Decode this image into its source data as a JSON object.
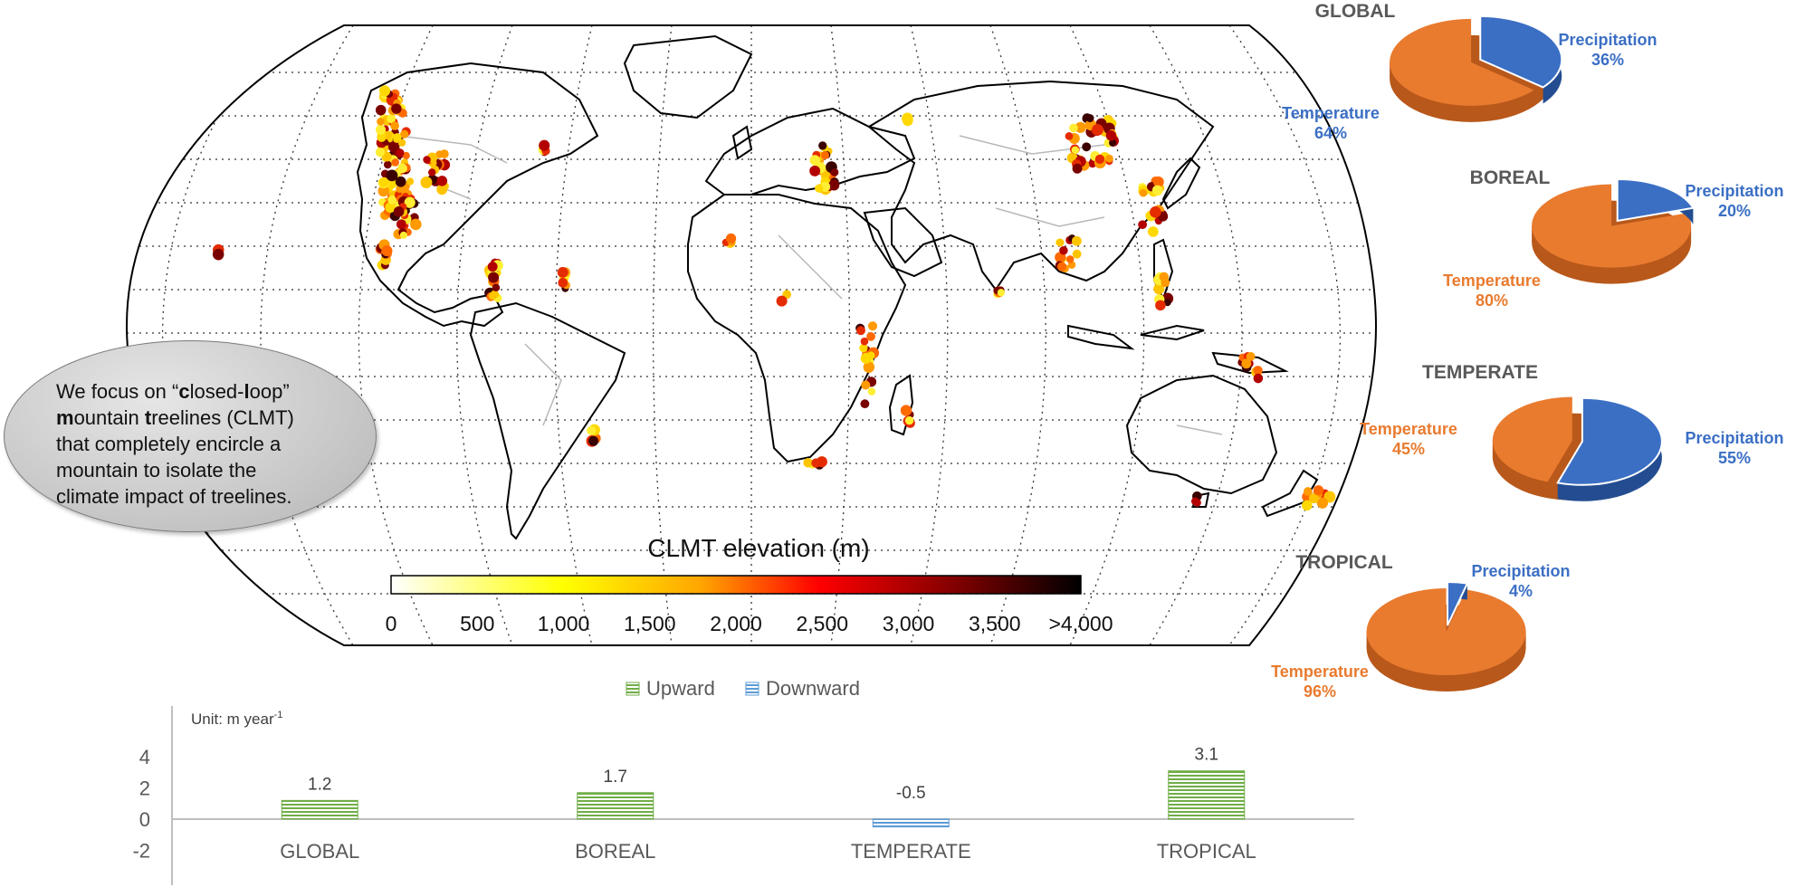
{
  "callout": {
    "line1_pre": "We focus on “",
    "c": "c",
    "line1_mid1": "losed-",
    "l": "l",
    "line1_mid2": "oop”",
    "m": "m",
    "line2_mid": "ountain ",
    "t": "t",
    "line2_end": "reelines (CLMT)",
    "line3": "that completely encircle a",
    "line4": "mountain to isolate the",
    "line5": "climate impact of treelines."
  },
  "colorbar": {
    "title": "CLMT elevation (m)",
    "ticks": [
      "0",
      "500",
      "1,000",
      "1,500",
      "2,000",
      "2,500",
      "3,000",
      "3,500",
      ">4,000"
    ],
    "gradient_stops": [
      "#ffffff",
      "#ffff00",
      "#ffa500",
      "#ff0000",
      "#800000",
      "#000000"
    ]
  },
  "colors": {
    "temperature": "#e97b2f",
    "temperature_dark": "#b8581a",
    "precipitation": "#3b6fc4",
    "precipitation_dark": "#244d91",
    "upward": "#70ad47",
    "downward": "#5b9bd5",
    "pie_title": "#595959",
    "coast": "#000000",
    "rivers": "#b8b8b8",
    "graticule": "#333333"
  },
  "pies": [
    {
      "title": "GLOBAL",
      "temperature_label": "Temperature",
      "temperature_pct": "64%",
      "precipitation_label": "Precipitation",
      "precipitation_pct": "36%"
    },
    {
      "title": "BOREAL",
      "temperature_label": "Temperature",
      "temperature_pct": "80%",
      "precipitation_label": "Precipitation",
      "precipitation_pct": "20%"
    },
    {
      "title": "TEMPERATE",
      "temperature_label": "Temperature",
      "temperature_pct": "45%",
      "precipitation_label": "Precipitation",
      "precipitation_pct": "55%"
    },
    {
      "title": "TROPICAL",
      "temperature_label": "Temperature",
      "temperature_pct": "96%",
      "precipitation_label": "Precipitation",
      "precipitation_pct": "4%"
    }
  ],
  "chart_data": [
    {
      "type": "pie",
      "title": "GLOBAL",
      "categories": [
        "Temperature",
        "Precipitation"
      ],
      "values": [
        64,
        36
      ]
    },
    {
      "type": "pie",
      "title": "BOREAL",
      "categories": [
        "Temperature",
        "Precipitation"
      ],
      "values": [
        80,
        20
      ]
    },
    {
      "type": "pie",
      "title": "TEMPERATE",
      "categories": [
        "Temperature",
        "Precipitation"
      ],
      "values": [
        45,
        55
      ]
    },
    {
      "type": "pie",
      "title": "TROPICAL",
      "categories": [
        "Temperature",
        "Precipitation"
      ],
      "values": [
        96,
        4
      ]
    },
    {
      "type": "bar",
      "categories": [
        "GLOBAL",
        "BOREAL",
        "TEMPERATE",
        "TROPICAL"
      ],
      "values": [
        1.2,
        1.7,
        -0.5,
        3.1
      ],
      "value_labels": [
        "1.2",
        "1.7",
        "-0.5",
        "3.1"
      ],
      "legend": [
        "Upward",
        "Downward"
      ],
      "legend_position": "top",
      "unit_label": "Unit: m year",
      "unit_sup": "-1",
      "yticks": [
        "4",
        "2",
        "0",
        "-2"
      ],
      "ylim": [
        -2,
        4
      ]
    }
  ]
}
